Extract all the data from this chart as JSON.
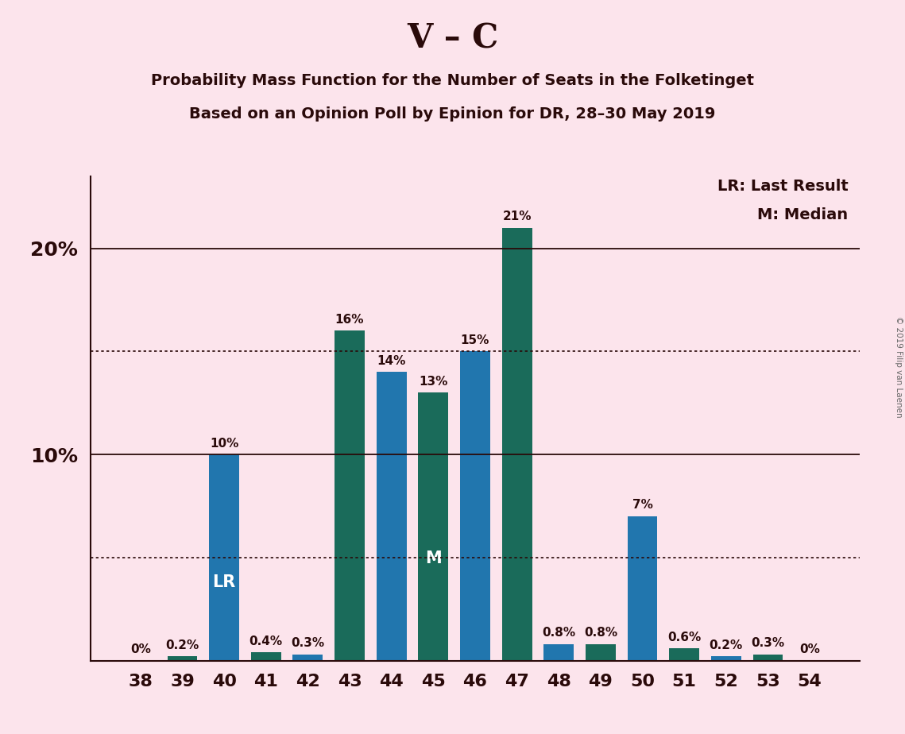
{
  "title_main": "V – C",
  "title_sub1": "Probability Mass Function for the Number of Seats in the Folketinget",
  "title_sub2": "Based on an Opinion Poll by Epinion for DR, 28–30 May 2019",
  "copyright": "© 2019 Filip van Laenen",
  "categories": [
    38,
    39,
    40,
    41,
    42,
    43,
    44,
    45,
    46,
    47,
    48,
    49,
    50,
    51,
    52,
    53,
    54
  ],
  "values": [
    0.0,
    0.2,
    10.0,
    0.4,
    0.3,
    16.0,
    14.0,
    13.0,
    15.0,
    21.0,
    0.8,
    0.8,
    7.0,
    0.6,
    0.2,
    0.3,
    0.0
  ],
  "bar_blue": "#2176ae",
  "bar_teal": "#1a6b5a",
  "lr_seat": 40,
  "median_seat": 45,
  "ylim_max": 23.5,
  "hlines_solid": [
    10,
    20
  ],
  "hlines_dotted": [
    5,
    15
  ],
  "background_color": "#fce4ec",
  "text_color": "#2a0a0a",
  "legend_text1": "LR: Last Result",
  "legend_text2": "M: Median"
}
